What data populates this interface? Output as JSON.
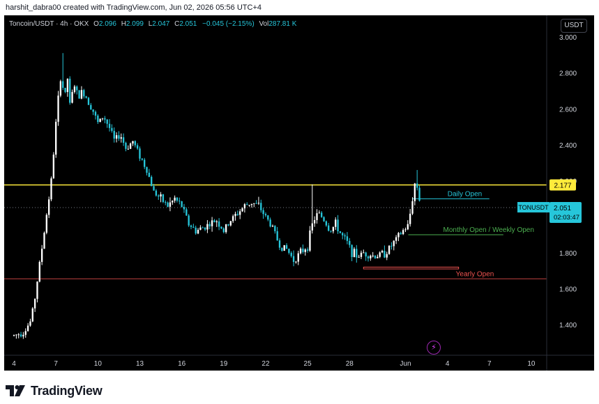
{
  "header": {
    "attribution": "harshit_dabra00 created with TradingView.com, Jun 02, 2026 05:56 UTC+4"
  },
  "legend": {
    "symbol": "Toncoin/USDT · 4h · OKX",
    "o_label": "O",
    "o_value": "2.096",
    "h_label": "H",
    "h_value": "2.099",
    "l_label": "L",
    "l_value": "2.047",
    "c_label": "C",
    "c_value": "2.051",
    "change": "−0.045 (−2.15%)",
    "vol_label": "Vol",
    "vol_value": "287.81 K"
  },
  "toolbar": {
    "currency": "USDT"
  },
  "brand": {
    "name": "TradingView",
    "logo_icon": "tradingview-logo-icon"
  },
  "colors": {
    "background": "#000000",
    "up": "#ffffff",
    "down": "#26c6da",
    "resistance": "#ffeb3b",
    "daily_open": "#26c6da",
    "monthly_open": "#4caf50",
    "yearly_open": "#ef5350",
    "axis_text": "#d1d4dc",
    "price_tag": "#26c6da"
  },
  "chart_data": {
    "type": "candlestick",
    "symbol": "TONUSDT",
    "timeframe": "4h",
    "x_ticks": [
      "4",
      "7",
      "10",
      "13",
      "16",
      "19",
      "22",
      "25",
      "28",
      "Jun",
      "4",
      "7",
      "10"
    ],
    "x_tick_days": [
      4,
      7,
      10,
      13,
      16,
      19,
      22,
      25,
      28,
      32,
      35,
      38,
      41
    ],
    "x_range_days": [
      3.3,
      42.1
    ],
    "y_ticks": [
      "1.400",
      "1.600",
      "1.800",
      "2.000",
      "2.200",
      "2.400",
      "2.600",
      "2.800",
      "3.000"
    ],
    "y_range": [
      1.23,
      3.12
    ],
    "grid": false,
    "price_path": [
      [
        4.0,
        1.34
      ],
      [
        4.7,
        1.36
      ],
      [
        5.2,
        1.42
      ],
      [
        5.5,
        1.55
      ],
      [
        5.8,
        1.72
      ],
      [
        6.1,
        1.88
      ],
      [
        6.4,
        2.05
      ],
      [
        6.7,
        2.22
      ],
      [
        7.0,
        2.52
      ],
      [
        7.2,
        2.68
      ],
      [
        7.4,
        2.82
      ],
      [
        7.6,
        2.62
      ],
      [
        7.8,
        2.8
      ],
      [
        8.0,
        2.62
      ],
      [
        8.3,
        2.74
      ],
      [
        8.6,
        2.66
      ],
      [
        8.9,
        2.7
      ],
      [
        9.2,
        2.66
      ],
      [
        9.6,
        2.6
      ],
      [
        10.0,
        2.52
      ],
      [
        10.4,
        2.56
      ],
      [
        10.8,
        2.5
      ],
      [
        11.2,
        2.42
      ],
      [
        11.6,
        2.46
      ],
      [
        12.0,
        2.38
      ],
      [
        12.5,
        2.42
      ],
      [
        13.0,
        2.34
      ],
      [
        13.5,
        2.26
      ],
      [
        14.0,
        2.14
      ],
      [
        14.5,
        2.1
      ],
      [
        15.0,
        2.06
      ],
      [
        15.5,
        2.1
      ],
      [
        16.0,
        2.06
      ],
      [
        16.5,
        1.96
      ],
      [
        17.0,
        1.92
      ],
      [
        17.5,
        1.94
      ],
      [
        18.0,
        1.96
      ],
      [
        18.5,
        1.98
      ],
      [
        19.0,
        1.92
      ],
      [
        19.5,
        1.98
      ],
      [
        20.0,
        2.02
      ],
      [
        20.5,
        2.06
      ],
      [
        21.0,
        2.08
      ],
      [
        21.5,
        2.06
      ],
      [
        22.0,
        2.0
      ],
      [
        22.5,
        1.94
      ],
      [
        23.0,
        1.84
      ],
      [
        23.5,
        1.82
      ],
      [
        24.0,
        1.76
      ],
      [
        24.5,
        1.8
      ],
      [
        25.0,
        1.84
      ],
      [
        25.4,
        1.98
      ],
      [
        25.8,
        2.02
      ],
      [
        26.2,
        1.98
      ],
      [
        26.6,
        1.92
      ],
      [
        27.0,
        1.96
      ],
      [
        27.4,
        1.9
      ],
      [
        27.8,
        1.86
      ],
      [
        28.2,
        1.8
      ],
      [
        28.6,
        1.78
      ],
      [
        29.0,
        1.8
      ],
      [
        29.4,
        1.79
      ],
      [
        29.8,
        1.78
      ],
      [
        30.2,
        1.79
      ],
      [
        30.6,
        1.8
      ],
      [
        31.0,
        1.84
      ],
      [
        31.4,
        1.88
      ],
      [
        31.8,
        1.92
      ],
      [
        32.2,
        1.95
      ],
      [
        32.5,
        2.1
      ],
      [
        32.7,
        2.2
      ],
      [
        32.9,
        2.15
      ],
      [
        33.1,
        2.05
      ]
    ],
    "high_extremes": [
      [
        7.5,
        2.91
      ],
      [
        25.4,
        2.18
      ],
      [
        32.8,
        2.26
      ]
    ],
    "levels": [
      {
        "name": "Resistance",
        "price": 2.177,
        "label": "2.177",
        "style": "solid"
      },
      {
        "name": "Daily Open",
        "price": 2.1,
        "label": "Daily Open",
        "x_from": 32.5,
        "x_to": 37
      },
      {
        "name": "Monthly Open / Weekly Open",
        "price": 1.9,
        "label": "Monthly Open / Weekly Open",
        "x_from": 32.2,
        "x_to": 38
      },
      {
        "name": "Yearly Open",
        "price": 1.655,
        "label": "Yearly Open",
        "style": "solid"
      },
      {
        "name": "Support box",
        "price_low": 1.71,
        "price_high": 1.72,
        "x_from": 29.0,
        "x_to": 35.8
      }
    ],
    "last_price": "2.051",
    "last_price_value": 2.051,
    "countdown": "02:03:47",
    "last_price_tag": "TONUSDT"
  }
}
